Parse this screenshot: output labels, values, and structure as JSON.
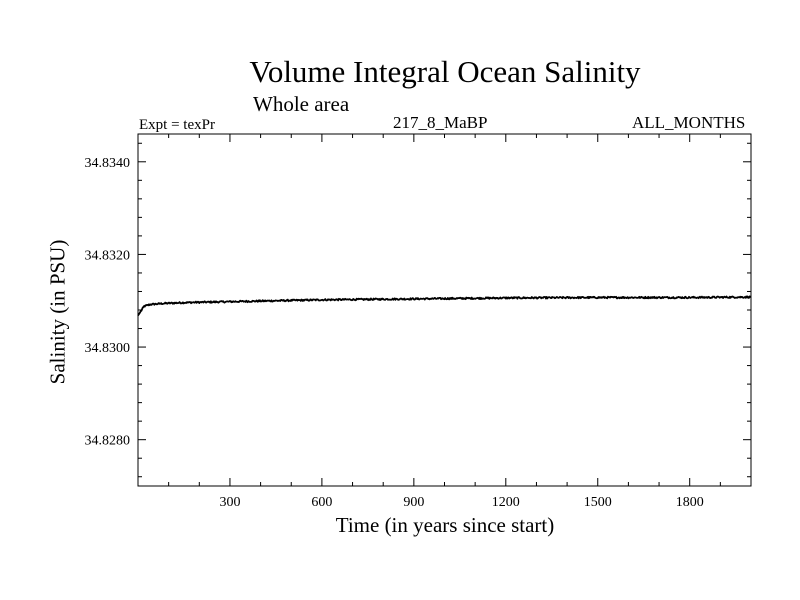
{
  "chart_data": {
    "type": "line",
    "title": "Volume Integral Ocean Salinity",
    "subtitle": "Whole area",
    "annotations": {
      "experiment": "Expt = texPr",
      "run": "217_8_MaBP",
      "months": "ALL_MONTHS"
    },
    "xlabel": "Time (in years since start)",
    "ylabel": "Salinity (in PSU)",
    "xlim": [
      0,
      2000
    ],
    "ylim": [
      34.827,
      34.8346
    ],
    "x_ticks": [
      300,
      600,
      900,
      1200,
      1500,
      1800
    ],
    "x_tick_labels": [
      "300",
      "600",
      "900",
      "1200",
      "1500",
      "1800"
    ],
    "y_ticks": [
      34.828,
      34.83,
      34.832,
      34.834
    ],
    "y_tick_labels": [
      "34.8280",
      "34.8300",
      "34.8320",
      "34.8340"
    ],
    "grid": false,
    "series": [
      {
        "name": "Salinity",
        "color": "#000000",
        "x": [
          0,
          10,
          20,
          40,
          80,
          150,
          300,
          600,
          900,
          1200,
          1500,
          1800,
          2000
        ],
        "values": [
          34.83068,
          34.83078,
          34.83088,
          34.83092,
          34.83094,
          34.83096,
          34.83098,
          34.83102,
          34.83104,
          34.83106,
          34.83107,
          34.83107,
          34.83108
        ]
      }
    ]
  }
}
